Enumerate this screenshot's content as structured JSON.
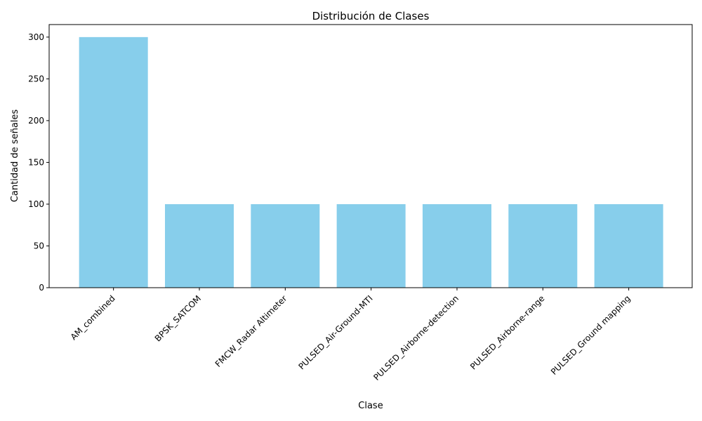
{
  "chart_data": {
    "type": "bar",
    "title": "Distribución de Clases",
    "xlabel": "Clase",
    "ylabel": "Cantidad de señales",
    "categories": [
      "AM_combined",
      "BPSK_SATCOM",
      "FMCW_Radar Altimeter",
      "PULSED_Air-Ground-MTI",
      "PULSED_Airborne-detection",
      "PULSED_Airborne-range",
      "PULSED_Ground mapping"
    ],
    "values": [
      300,
      100,
      100,
      100,
      100,
      100,
      100
    ],
    "ylim": [
      0,
      315
    ],
    "yticks": [
      0,
      50,
      100,
      150,
      200,
      250,
      300
    ],
    "grid": false,
    "bar_color": "#87CEEB"
  }
}
